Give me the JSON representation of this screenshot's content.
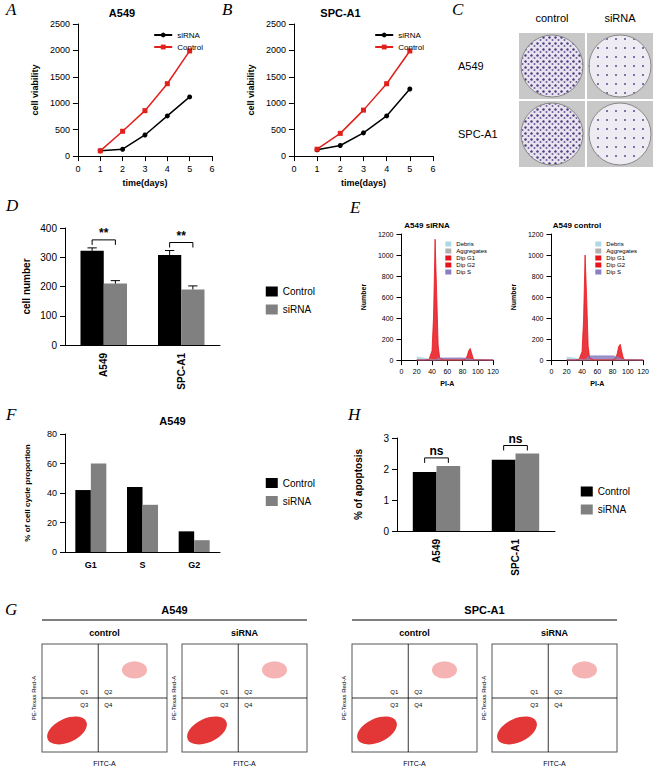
{
  "chart_data": [
    {
      "panel": "A",
      "type": "line",
      "title": "A549",
      "x_label": "time(days)",
      "y_label": "cell viability",
      "x": [
        1,
        2,
        3,
        4,
        5
      ],
      "xlim": [
        0,
        6
      ],
      "xticks": [
        0,
        1,
        2,
        3,
        4,
        5,
        6
      ],
      "ylim": [
        0,
        2500
      ],
      "yticks": [
        0,
        500,
        1000,
        1500,
        2000,
        2500
      ],
      "grid": false,
      "legend": "top-right",
      "series": [
        {
          "name": "siRNA",
          "color": "#000000",
          "marker": "circle",
          "values": [
            100,
            130,
            400,
            760,
            1120
          ]
        },
        {
          "name": "Control",
          "color": "#e0201b",
          "marker": "square",
          "values": [
            100,
            470,
            860,
            1370,
            1990
          ]
        }
      ]
    },
    {
      "panel": "B",
      "type": "line",
      "title": "SPC-A1",
      "x_label": "time(days)",
      "y_label": "cell viability",
      "x": [
        1,
        2,
        3,
        4,
        5
      ],
      "xlim": [
        0,
        6
      ],
      "xticks": [
        0,
        1,
        2,
        3,
        4,
        5,
        6
      ],
      "ylim": [
        0,
        2500
      ],
      "yticks": [
        0,
        500,
        1000,
        1500,
        2000,
        2500
      ],
      "grid": false,
      "legend": "top-right",
      "series": [
        {
          "name": "siRNA",
          "color": "#000000",
          "marker": "circle",
          "values": [
            120,
            200,
            440,
            760,
            1270
          ]
        },
        {
          "name": "Control",
          "color": "#e0201b",
          "marker": "square",
          "values": [
            130,
            430,
            870,
            1370,
            1990
          ]
        }
      ]
    },
    {
      "panel": "D",
      "type": "bar",
      "y_label": "cell number",
      "categories": [
        "A549",
        "SPC-A1"
      ],
      "ylim": [
        0,
        400
      ],
      "yticks": [
        0,
        100,
        200,
        300,
        400
      ],
      "grid": false,
      "legend": "right",
      "series": [
        {
          "name": "Control",
          "color": "#000000",
          "values": [
            322,
            308
          ],
          "errors": [
            10,
            15
          ]
        },
        {
          "name": "siRNA",
          "color": "#808080",
          "values": [
            210,
            190
          ],
          "errors": [
            10,
            12
          ]
        }
      ],
      "annotations": [
        "**",
        "**"
      ]
    },
    {
      "panel": "E",
      "type": "area",
      "title": "A549 siRNA",
      "x_label": "PI-A",
      "y_label": "Number",
      "x": [
        20,
        30,
        36,
        40,
        42,
        44,
        46,
        48,
        50,
        55,
        60,
        70,
        80,
        84,
        86,
        88,
        90,
        92,
        94,
        96,
        100,
        110,
        120
      ],
      "xlim": [
        0,
        120
      ],
      "xticks": [
        0,
        20,
        40,
        60,
        80,
        100,
        120
      ],
      "ylim": [
        0,
        1200
      ],
      "yticks": [
        0,
        200,
        400,
        600,
        800,
        1000,
        1200
      ],
      "grid": false,
      "legend": "top-right",
      "series": [
        {
          "name": "Debris",
          "color": "#add8e6",
          "values": [
            30,
            18,
            10,
            5,
            0,
            0,
            0,
            0,
            0,
            0,
            0,
            0,
            0,
            0,
            0,
            0,
            0,
            0,
            0,
            0,
            0,
            0,
            0
          ]
        },
        {
          "name": "Aggregates",
          "color": "#b0b0b0",
          "values": [
            0,
            0,
            0,
            0,
            0,
            0,
            0,
            0,
            0,
            0,
            0,
            0,
            0,
            0,
            0,
            0,
            0,
            0,
            5,
            6,
            8,
            5,
            2
          ]
        },
        {
          "name": "Dip G1",
          "color": "#e8141c",
          "values": [
            0,
            0,
            5,
            90,
            420,
            1150,
            650,
            140,
            20,
            0,
            0,
            0,
            0,
            0,
            0,
            0,
            0,
            0,
            0,
            0,
            0,
            0,
            0
          ]
        },
        {
          "name": "Dip G2",
          "color": "#e8141c",
          "values": [
            0,
            0,
            0,
            0,
            0,
            0,
            0,
            0,
            0,
            0,
            0,
            0,
            0,
            10,
            40,
            90,
            110,
            60,
            15,
            0,
            0,
            0,
            0
          ]
        },
        {
          "name": "Dip S",
          "color": "#8a7fc0",
          "values": [
            0,
            0,
            0,
            0,
            0,
            0,
            8,
            15,
            20,
            20,
            20,
            20,
            20,
            18,
            15,
            12,
            8,
            5,
            0,
            0,
            0,
            0,
            0
          ]
        }
      ]
    },
    {
      "type": "area",
      "title": "A549 control",
      "x_label": "PI-A",
      "y_label": "Number",
      "x": [
        20,
        30,
        36,
        40,
        42,
        44,
        46,
        48,
        50,
        55,
        60,
        70,
        80,
        84,
        86,
        88,
        90,
        92,
        94,
        96,
        100,
        110,
        120
      ],
      "xlim": [
        0,
        120
      ],
      "xticks": [
        0,
        20,
        40,
        60,
        80,
        100,
        120
      ],
      "ylim": [
        0,
        1200
      ],
      "yticks": [
        0,
        200,
        400,
        600,
        800,
        1000,
        1200
      ],
      "grid": false,
      "legend": "top-right",
      "series": [
        {
          "name": "Debris",
          "color": "#add8e6",
          "values": [
            30,
            18,
            10,
            5,
            0,
            0,
            0,
            0,
            0,
            0,
            0,
            0,
            0,
            0,
            0,
            0,
            0,
            0,
            0,
            0,
            0,
            0,
            0
          ]
        },
        {
          "name": "Aggregates",
          "color": "#b0b0b0",
          "values": [
            0,
            0,
            0,
            0,
            0,
            0,
            0,
            0,
            0,
            0,
            0,
            0,
            0,
            0,
            0,
            0,
            0,
            0,
            5,
            6,
            8,
            5,
            2
          ]
        },
        {
          "name": "Dip G1",
          "color": "#e8141c",
          "values": [
            0,
            0,
            5,
            80,
            380,
            1000,
            600,
            130,
            20,
            0,
            0,
            0,
            0,
            0,
            0,
            0,
            0,
            0,
            0,
            0,
            0,
            0,
            0
          ]
        },
        {
          "name": "Dip G2",
          "color": "#e8141c",
          "values": [
            0,
            0,
            0,
            0,
            0,
            0,
            0,
            0,
            0,
            0,
            0,
            0,
            0,
            15,
            60,
            130,
            150,
            80,
            20,
            0,
            0,
            0,
            0
          ]
        },
        {
          "name": "Dip S",
          "color": "#8a7fc0",
          "values": [
            0,
            0,
            0,
            0,
            0,
            0,
            15,
            30,
            40,
            40,
            40,
            40,
            40,
            35,
            30,
            25,
            15,
            8,
            0,
            0,
            0,
            0,
            0
          ]
        }
      ]
    },
    {
      "panel": "F",
      "type": "bar",
      "title": "A549",
      "y_label": "% of cell cycle proportion",
      "categories": [
        "G1",
        "S",
        "G2"
      ],
      "ylim": [
        0,
        80
      ],
      "yticks": [
        0,
        20,
        40,
        60,
        80
      ],
      "grid": false,
      "legend": "right",
      "series": [
        {
          "name": "Control",
          "color": "#000000",
          "values": [
            42,
            44,
            14
          ]
        },
        {
          "name": "siRNA",
          "color": "#808080",
          "values": [
            60,
            32,
            8
          ]
        }
      ]
    },
    {
      "panel": "H",
      "type": "bar",
      "y_label": "% of apoptosis",
      "categories": [
        "A549",
        "SPC-A1"
      ],
      "ylim": [
        0,
        3
      ],
      "yticks": [
        0,
        1,
        2,
        3
      ],
      "grid": false,
      "legend": "right",
      "series": [
        {
          "name": "Control",
          "color": "#000000",
          "values": [
            1.9,
            2.3
          ]
        },
        {
          "name": "siRNA",
          "color": "#808080",
          "values": [
            2.1,
            2.5
          ]
        }
      ],
      "annotations": [
        "ns",
        "ns"
      ]
    }
  ],
  "images": [
    {
      "panel": "C",
      "type": "colony_plates",
      "columns": [
        "control",
        "siRNA"
      ],
      "rows": [
        "A549",
        "SPC-A1"
      ]
    },
    {
      "panel": "G",
      "type": "flow_dot_plots",
      "groups": [
        {
          "title": "A549",
          "plots": [
            "control",
            "siRNA"
          ]
        },
        {
          "title": "SPC-A1",
          "plots": [
            "control",
            "siRNA"
          ]
        }
      ],
      "x_label": "FITC-A",
      "y_label": "PE-Texas Red-A",
      "quadrants": [
        "Q1",
        "Q2",
        "Q3",
        "Q4"
      ]
    }
  ]
}
